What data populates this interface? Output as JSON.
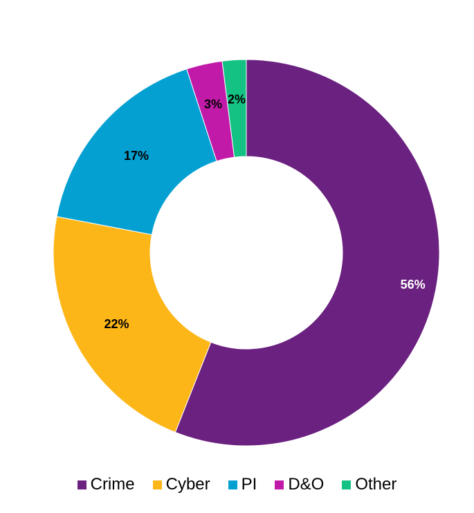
{
  "chart_data": {
    "type": "pie",
    "donut": true,
    "categories": [
      "Crime",
      "Cyber",
      "PI",
      "D&O",
      "Other"
    ],
    "values": [
      56,
      22,
      17,
      3,
      2
    ],
    "labels": [
      "56%",
      "22%",
      "17%",
      "3%",
      "2%"
    ],
    "colors": [
      "#6B2180",
      "#FDB618",
      "#04A0D2",
      "#C21AA8",
      "#14C384"
    ],
    "label_colors": [
      "#ffffff",
      "#000000",
      "#000000",
      "#000000",
      "#000000"
    ],
    "start": "top",
    "direction": "clockwise",
    "legend": {
      "placement": "bottom",
      "entries": [
        "Crime",
        "Cyber",
        "PI",
        "D&O",
        "Other"
      ]
    }
  }
}
